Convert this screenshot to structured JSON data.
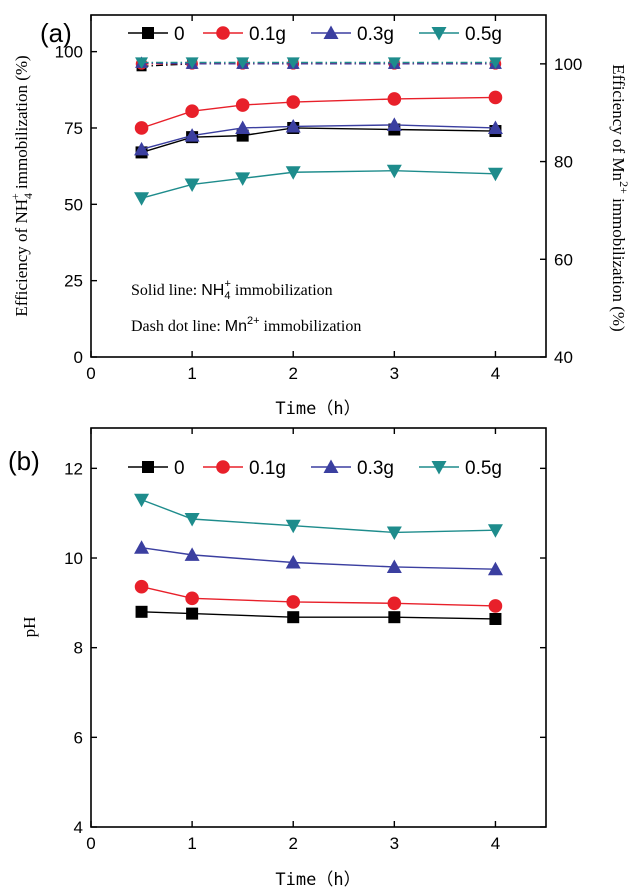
{
  "chart_data": [
    {
      "panel": "(a)",
      "type": "line",
      "x": [
        0.5,
        1,
        1.5,
        2,
        3,
        4
      ],
      "xlabel": "Time（h）",
      "ylabel": "Efficiency of NH4+ immobilization (%)",
      "ylabel_parts": {
        "pre": "Efficiency of NH",
        "sub": "4",
        "sup": "+",
        "post": " immobilization (%)"
      },
      "y2label": "Efficiency of Mn2+ immobilization (%)",
      "y2label_parts": {
        "pre": "Efficiency of Mn",
        "sup": "2+",
        "post": " immobilization (%)"
      },
      "xlim": [
        0,
        4.5
      ],
      "ylim": [
        0,
        112
      ],
      "y2lim": [
        40,
        110
      ],
      "xticks": [
        "0",
        "1",
        "2",
        "3",
        "4"
      ],
      "yticks": [
        "0",
        "25",
        "50",
        "75",
        "100"
      ],
      "y2ticks": [
        "40",
        "60",
        "80",
        "100"
      ],
      "legend": "top",
      "series": [
        {
          "name": "0",
          "color": "#000000",
          "marker": "square",
          "values": [
            67,
            72,
            72.5,
            75,
            74.5,
            74
          ]
        },
        {
          "name": "0.1g",
          "color": "#e8202a",
          "marker": "circle",
          "values": [
            75,
            80.5,
            82.5,
            83.5,
            84.5,
            85
          ]
        },
        {
          "name": "0.3g",
          "color": "#3b3fa0",
          "marker": "triangle-up",
          "values": [
            68,
            72.5,
            75,
            75.5,
            76,
            75
          ]
        },
        {
          "name": "0.5g",
          "color": "#1e8c8c",
          "marker": "triangle-down",
          "values": [
            52,
            56.5,
            58.5,
            60.5,
            61,
            60
          ]
        }
      ],
      "series_mn": [
        {
          "name": "0",
          "color": "#000000",
          "marker": "square",
          "values": [
            99.5,
            100,
            100,
            100,
            100,
            100
          ]
        },
        {
          "name": "0.1g",
          "color": "#e8202a",
          "marker": "circle",
          "values": [
            100,
            100,
            100,
            100,
            100,
            100
          ]
        },
        {
          "name": "0.3g",
          "color": "#3b3fa0",
          "marker": "triangle-up",
          "values": [
            100.2,
            100,
            100,
            100,
            100,
            100
          ]
        },
        {
          "name": "0.5g",
          "color": "#1e8c8c",
          "marker": "triangle-down",
          "values": [
            100.3,
            100.3,
            100.3,
            100.3,
            100.3,
            100.3
          ]
        }
      ],
      "notes": [
        {
          "pre": "Solid line: ",
          "main": "NH",
          "sub": "4",
          "sup": "+",
          "post": " immobilization"
        },
        {
          "pre": "Dash dot line: ",
          "main": "Mn",
          "sub": "",
          "sup": "2+",
          "post": " immobilization"
        }
      ]
    },
    {
      "panel": "(b)",
      "type": "line",
      "x": [
        0.5,
        1,
        2,
        3,
        4
      ],
      "xlabel": "Time（h）",
      "ylabel": "pH",
      "xlim": [
        0,
        4.5
      ],
      "ylim": [
        4,
        12.9
      ],
      "xticks": [
        "0",
        "1",
        "2",
        "3",
        "4"
      ],
      "yticks": [
        "4",
        "6",
        "8",
        "10",
        "12"
      ],
      "legend": "top",
      "series": [
        {
          "name": "0",
          "color": "#000000",
          "marker": "square",
          "values": [
            8.8,
            8.76,
            8.68,
            8.68,
            8.64
          ]
        },
        {
          "name": "0.1g",
          "color": "#e8202a",
          "marker": "circle",
          "values": [
            9.36,
            9.1,
            9.02,
            8.99,
            8.93
          ]
        },
        {
          "name": "0.3g",
          "color": "#3b3fa0",
          "marker": "triangle-up",
          "values": [
            10.23,
            10.07,
            9.9,
            9.8,
            9.75
          ]
        },
        {
          "name": "0.5g",
          "color": "#1e8c8c",
          "marker": "triangle-down",
          "values": [
            11.3,
            10.87,
            10.72,
            10.57,
            10.62
          ]
        }
      ]
    }
  ]
}
